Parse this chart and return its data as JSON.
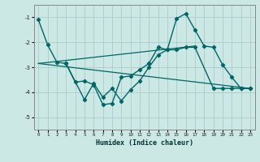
{
  "xlabel": "Humidex (Indice chaleur)",
  "background_color": "#cce8e4",
  "grid_color": "#aacccc",
  "line_color": "#006666",
  "xlim": [
    -0.5,
    23.5
  ],
  "ylim": [
    -5.5,
    -0.5
  ],
  "yticks": [
    -5,
    -4,
    -3,
    -2,
    -1
  ],
  "xticks": [
    0,
    1,
    2,
    3,
    4,
    5,
    6,
    7,
    8,
    9,
    10,
    11,
    12,
    13,
    14,
    15,
    16,
    17,
    18,
    19,
    20,
    21,
    22,
    23
  ],
  "line1_x": [
    0,
    1,
    2,
    3,
    4,
    5,
    6,
    7,
    8,
    9,
    10,
    11,
    12,
    13,
    14,
    15,
    16,
    17,
    18,
    19,
    20,
    21,
    22,
    23
  ],
  "line1_y": [
    -1.1,
    -2.1,
    -2.8,
    -2.85,
    -3.6,
    -3.55,
    -3.7,
    -4.5,
    -4.45,
    -3.4,
    -3.35,
    -3.1,
    -2.85,
    -2.2,
    -2.3,
    -1.05,
    -0.85,
    -1.5,
    -2.15,
    -2.2,
    -2.9,
    -3.4,
    -3.85,
    -3.85
  ],
  "line2_x": [
    3,
    5,
    6,
    7,
    8,
    9,
    10,
    11,
    12,
    13,
    14,
    15,
    16,
    17,
    19,
    20,
    21,
    22,
    23
  ],
  "line2_y": [
    -2.85,
    -4.3,
    -3.65,
    -4.2,
    -3.85,
    -4.35,
    -3.9,
    -3.55,
    -3.0,
    -2.5,
    -2.3,
    -2.3,
    -2.2,
    -2.2,
    -3.85,
    -3.85,
    -3.85,
    -3.85,
    -3.85
  ],
  "trend1_x": [
    0,
    23
  ],
  "trend1_y": [
    -2.85,
    -3.85
  ],
  "trend2_x": [
    0,
    17
  ],
  "trend2_y": [
    -2.85,
    -2.15
  ]
}
